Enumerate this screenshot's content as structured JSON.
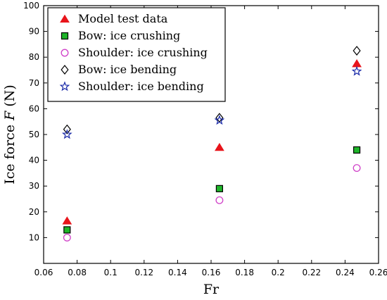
{
  "chart_data": {
    "type": "scatter",
    "xlabel": "Fr",
    "ylabel": "Ice force F (N)",
    "ylabel_parts": {
      "prefix": "Ice force ",
      "var": "F",
      "suffix": " (N)"
    },
    "xlim": [
      0.06,
      0.26
    ],
    "ylim": [
      0,
      100
    ],
    "xticks": [
      0.06,
      0.08,
      0.1,
      0.12,
      0.14,
      0.16,
      0.18,
      0.2,
      0.22,
      0.24,
      0.26
    ],
    "xtick_labels": [
      "0.06",
      "0.08",
      "0.1",
      "0.12",
      "0.14",
      "0.16",
      "0.18",
      "0.2",
      "0.22",
      "0.24",
      "0.26"
    ],
    "yticks": [
      10,
      20,
      30,
      40,
      50,
      60,
      70,
      80,
      90,
      100
    ],
    "ytick_labels": [
      "10",
      "20",
      "30",
      "40",
      "50",
      "60",
      "70",
      "80",
      "90",
      "100"
    ],
    "grid": false,
    "legend_position": "top-left",
    "series": [
      {
        "name": "Model test data",
        "marker": "triangle",
        "color": "#e8141b",
        "fill": "#e8141b",
        "x": [
          0.074,
          0.165,
          0.247
        ],
        "y": [
          16.5,
          45,
          77.5
        ]
      },
      {
        "name": "Bow: ice crushing",
        "marker": "square",
        "color": "#000000",
        "fill": "#1fb52a",
        "x": [
          0.074,
          0.165,
          0.247
        ],
        "y": [
          13,
          29,
          44
        ]
      },
      {
        "name": "Shoulder: ice crushing",
        "marker": "circle",
        "color": "#d040c8",
        "fill": "none",
        "x": [
          0.074,
          0.165,
          0.247
        ],
        "y": [
          10,
          24.5,
          37
        ]
      },
      {
        "name": "Bow: ice bending",
        "marker": "diamond",
        "color": "#000000",
        "fill": "none",
        "x": [
          0.074,
          0.165,
          0.247
        ],
        "y": [
          52,
          56.5,
          82.5
        ]
      },
      {
        "name": "Shoulder: ice bending",
        "marker": "star",
        "color": "#1a2aa8",
        "fill": "none",
        "x": [
          0.074,
          0.165,
          0.247
        ],
        "y": [
          50,
          55.5,
          74.5
        ]
      }
    ]
  }
}
